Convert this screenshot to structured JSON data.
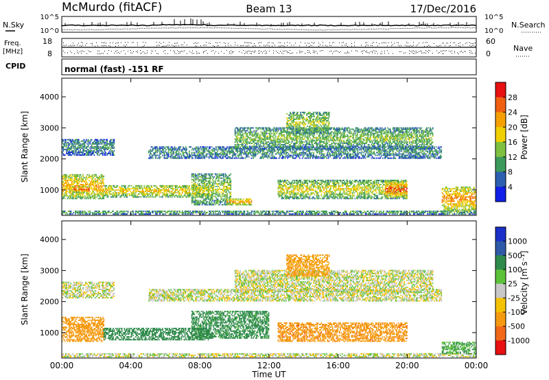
{
  "header": {
    "station": "McMurdo (fitACF)",
    "beam": "Beam 13",
    "date": "17/Dec/2016"
  },
  "noise_panel": {
    "left_label": "N.Sky",
    "right_label": "N.Search",
    "left_ticks": [
      "10^5",
      "10^0"
    ],
    "right_ticks": [
      "10^5",
      "10^0"
    ]
  },
  "freq_panel": {
    "left_label_1": "Freq.",
    "left_label_2": "[MHz]",
    "right_label": "Nave",
    "left_ticks": [
      "18",
      "8"
    ],
    "right_ticks": [
      "60",
      "0"
    ]
  },
  "cpid_panel": {
    "label": "CPID",
    "text": "normal (fast) -151 RF"
  },
  "power_colorbar": {
    "title": "Power [dB]",
    "labels": [
      "28",
      "24",
      "20",
      "16",
      "12",
      "8",
      "4"
    ],
    "colors": [
      "#e81010",
      "#f06010",
      "#f5a000",
      "#f0d000",
      "#7fc040",
      "#3c9a5a",
      "#2d5fb0",
      "#1020e8"
    ]
  },
  "velocity_colorbar": {
    "title": "Velocity [m s⁻¹]",
    "labels": [
      "1000",
      "500",
      "100",
      "25",
      "-25",
      "-100",
      "-500",
      "-1000"
    ],
    "colors": [
      "#1a30c8",
      "#2f5aa8",
      "#2e8a4a",
      "#5cc23a",
      "#c8c8c8",
      "#f5c200",
      "#f59a10",
      "#f06818",
      "#e81010"
    ]
  },
  "chart_data": [
    {
      "type": "heatmap",
      "title": "Power [dB]",
      "xlabel": "Time UT",
      "ylabel": "Slant Range [km]",
      "x_ticks": [
        "00:00",
        "04:00",
        "08:00",
        "12:00",
        "16:00",
        "20:00",
        "00:00"
      ],
      "y_ticks": [
        1000,
        2000,
        3000,
        4000
      ],
      "xlim_hours": [
        0,
        24
      ],
      "ylim_km": [
        180,
        4600
      ],
      "color_range_db": [
        0,
        32
      ],
      "echo_regions": [
        {
          "t_start": 0.0,
          "t_end": 24.0,
          "r_min": 200,
          "r_max": 320,
          "level_db": 12
        },
        {
          "t_start": 0.0,
          "t_end": 2.4,
          "r_min": 700,
          "r_max": 1500,
          "level_db": 22
        },
        {
          "t_start": 0.6,
          "t_end": 1.6,
          "r_min": 900,
          "r_max": 1100,
          "level_db": 28
        },
        {
          "t_start": 2.4,
          "t_end": 8.5,
          "r_min": 750,
          "r_max": 1150,
          "level_db": 20
        },
        {
          "t_start": 7.5,
          "t_end": 9.8,
          "r_min": 500,
          "r_max": 1500,
          "level_db": 16
        },
        {
          "t_start": 9.5,
          "t_end": 11.0,
          "r_min": 500,
          "r_max": 700,
          "level_db": 24
        },
        {
          "t_start": 12.5,
          "t_end": 20.0,
          "r_min": 700,
          "r_max": 1300,
          "level_db": 18
        },
        {
          "t_start": 18.7,
          "t_end": 20.0,
          "r_min": 750,
          "r_max": 1250,
          "level_db": 28
        },
        {
          "t_start": 22.0,
          "t_end": 24.0,
          "r_min": 300,
          "r_max": 1100,
          "level_db": 24
        },
        {
          "t_start": 0.0,
          "t_end": 3.0,
          "r_min": 2100,
          "r_max": 2600,
          "level_db": 10
        },
        {
          "t_start": 5.0,
          "t_end": 22.0,
          "r_min": 2000,
          "r_max": 2400,
          "level_db": 10
        },
        {
          "t_start": 10.0,
          "t_end": 21.5,
          "r_min": 2300,
          "r_max": 3000,
          "level_db": 14
        },
        {
          "t_start": 13.0,
          "t_end": 15.5,
          "r_min": 2800,
          "r_max": 3500,
          "level_db": 16
        }
      ]
    },
    {
      "type": "heatmap",
      "title": "Velocity [m s⁻¹]",
      "xlabel": "Time UT",
      "ylabel": "Slant Range [km]",
      "x_ticks": [
        "00:00",
        "04:00",
        "08:00",
        "12:00",
        "16:00",
        "20:00",
        "00:00"
      ],
      "y_ticks": [
        1000,
        2000,
        3000,
        4000
      ],
      "xlim_hours": [
        0,
        24
      ],
      "ylim_km": [
        180,
        4600
      ],
      "echo_regions": [
        {
          "t_start": 0.0,
          "t_end": 24.0,
          "r_min": 200,
          "r_max": 320,
          "velocity": 0
        },
        {
          "t_start": 0.0,
          "t_end": 2.4,
          "r_min": 700,
          "r_max": 1500,
          "velocity": -200
        },
        {
          "t_start": 2.4,
          "t_end": 8.5,
          "r_min": 750,
          "r_max": 1150,
          "velocity": 200
        },
        {
          "t_start": 7.5,
          "t_end": 12.0,
          "r_min": 800,
          "r_max": 1700,
          "velocity": 150
        },
        {
          "t_start": 12.5,
          "t_end": 20.0,
          "r_min": 700,
          "r_max": 1300,
          "velocity": -450
        },
        {
          "t_start": 22.0,
          "t_end": 24.0,
          "r_min": 300,
          "r_max": 700,
          "velocity": 100
        },
        {
          "t_start": 0.0,
          "t_end": 3.0,
          "r_min": 2100,
          "r_max": 2600,
          "velocity": 0
        },
        {
          "t_start": 5.0,
          "t_end": 22.0,
          "r_min": 2000,
          "r_max": 2400,
          "velocity": 0
        },
        {
          "t_start": 10.0,
          "t_end": 21.5,
          "r_min": 2300,
          "r_max": 3000,
          "velocity": 0
        },
        {
          "t_start": 13.0,
          "t_end": 15.5,
          "r_min": 2800,
          "r_max": 3500,
          "velocity": -150
        }
      ]
    }
  ]
}
